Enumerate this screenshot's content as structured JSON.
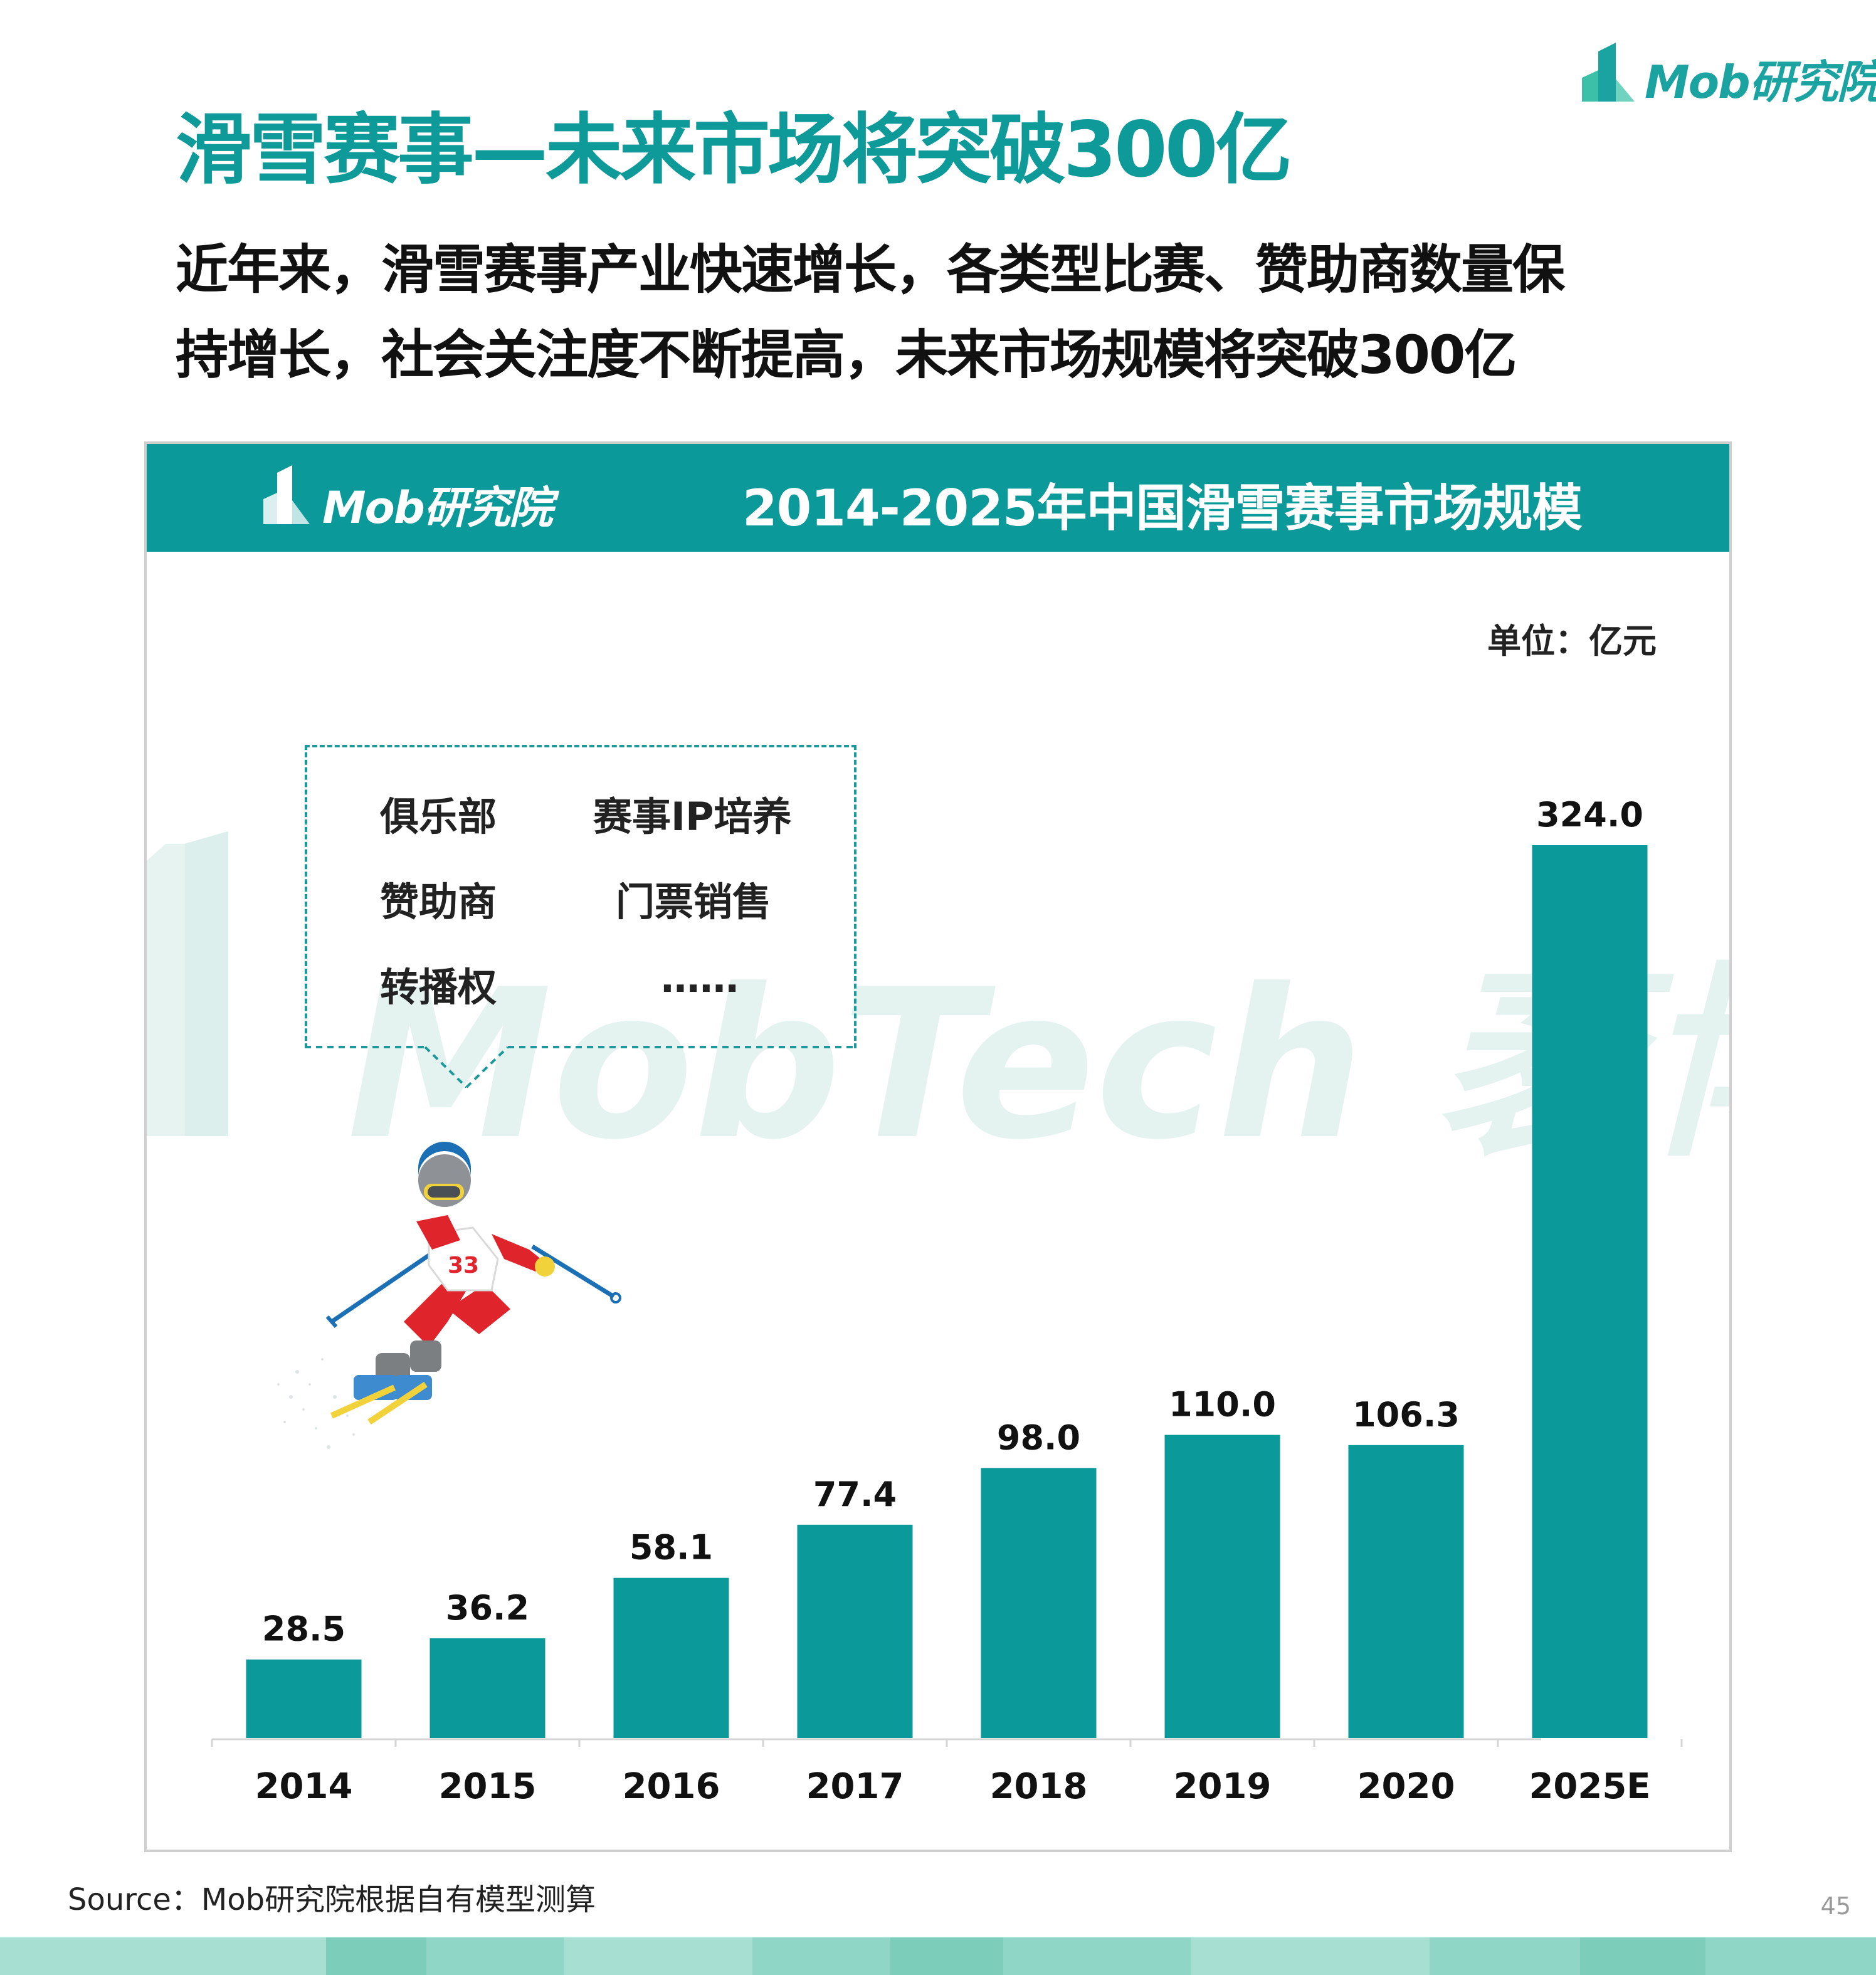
{
  "brand": {
    "logo_text": "Mob研究院",
    "watermark_text": "MobTech 袤博"
  },
  "header": {
    "title": "滑雪赛事—未来市场将突破300亿",
    "subtitle_line1": "近年来，滑雪赛事产业快速增长，各类型比赛、赞助商数量保",
    "subtitle_line2": "持增长，社会关注度不断提高，未来市场规模将突破300亿"
  },
  "panel": {
    "logo_text": "Mob研究院",
    "chart_title": "2014-2025年中国滑雪赛事市场规模",
    "unit_label": "单位：亿元",
    "callout": {
      "items": [
        "俱乐部",
        "赛事IP培养",
        "赞助商",
        "门票销售",
        "转播权",
        "……"
      ]
    }
  },
  "chart_data": {
    "type": "bar",
    "title": "2014-2025年中国滑雪赛事市场规模",
    "unit": "单位：亿元",
    "categories": [
      "2014",
      "2015",
      "2016",
      "2017",
      "2018",
      "2019",
      "2020",
      "2025E"
    ],
    "values": [
      28.5,
      36.2,
      58.1,
      77.4,
      98.0,
      110.0,
      106.3,
      324.0
    ],
    "value_labels": [
      "28.5",
      "36.2",
      "58.1",
      "77.4",
      "98.0",
      "110.0",
      "106.3",
      "324.0"
    ],
    "xlabel": "",
    "ylabel": "",
    "ylim": [
      0,
      324.0
    ],
    "grid": false,
    "bar_color": "#0b9999"
  },
  "footer": {
    "source": "Source：Mob研究院根据自有模型测算",
    "page_number": "45"
  },
  "colors": {
    "accent": "#0b9999",
    "title": "#0f9a9a",
    "footer_band": "#8fd6c6"
  }
}
